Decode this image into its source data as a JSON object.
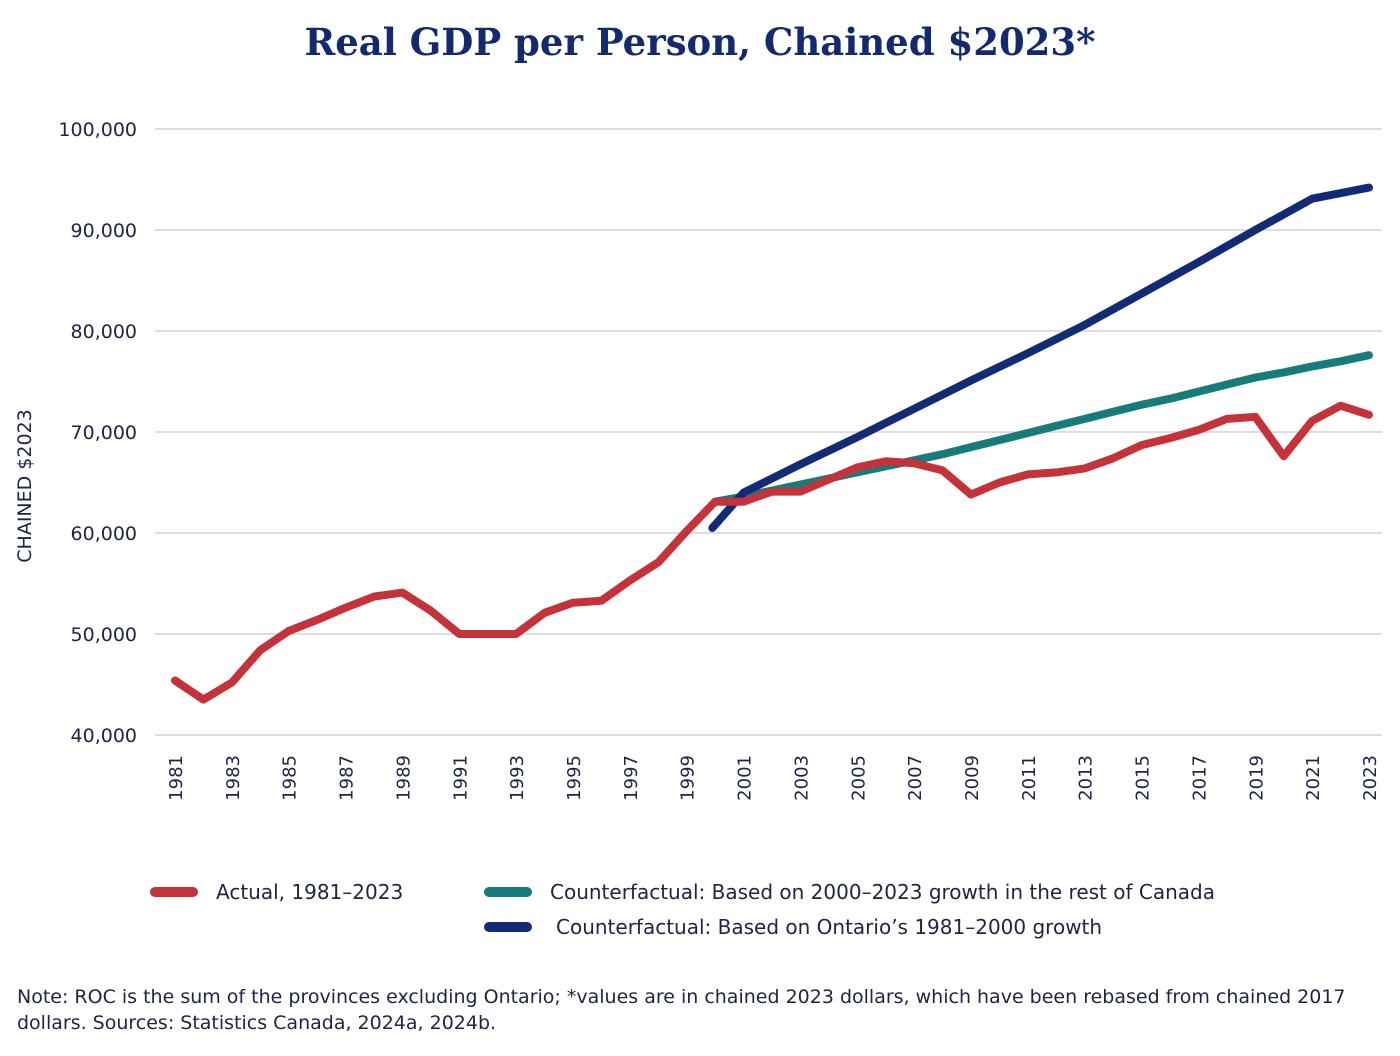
{
  "chart_data": {
    "type": "line",
    "title": "Real GDP per Person, Chained $2023*",
    "ylabel": "CHAINED $2023",
    "xlabel": "",
    "ylim": [
      40000,
      100000
    ],
    "yticks": [
      40000,
      50000,
      60000,
      70000,
      80000,
      90000,
      100000
    ],
    "ytick_labels": [
      "40,000",
      "50,000",
      "60,000",
      "70,000",
      "80,000",
      "90,000",
      "100,000"
    ],
    "xticks": [
      1981,
      1983,
      1985,
      1987,
      1989,
      1991,
      1993,
      1995,
      1997,
      1999,
      2001,
      2003,
      2005,
      2007,
      2009,
      2011,
      2013,
      2015,
      2017,
      2019,
      2021,
      2023
    ],
    "grid": true,
    "legend_position": "bottom",
    "series": [
      {
        "name": "Actual, 1981–2023",
        "color": "#c4333a",
        "x": [
          1981,
          1982,
          1983,
          1984,
          1985,
          1986,
          1987,
          1988,
          1989,
          1990,
          1991,
          1992,
          1993,
          1994,
          1995,
          1996,
          1997,
          1998,
          1999,
          2000,
          2001,
          2002,
          2003,
          2004,
          2005,
          2006,
          2007,
          2008,
          2009,
          2010,
          2011,
          2012,
          2013,
          2014,
          2015,
          2016,
          2017,
          2018,
          2019,
          2020,
          2021,
          2022,
          2023
        ],
        "values": [
          45400,
          43500,
          45200,
          48400,
          50300,
          51400,
          52600,
          53700,
          54100,
          52300,
          50000,
          50000,
          50000,
          52100,
          53100,
          53300,
          55300,
          57100,
          60200,
          63100,
          63100,
          64100,
          64100,
          65300,
          66500,
          67100,
          66900,
          66200,
          63800,
          65000,
          65800,
          66000,
          66400,
          67400,
          68700,
          69400,
          70200,
          71300,
          71500,
          67600,
          71100,
          72600,
          71700
        ]
      },
      {
        "name": "Counterfactual: Based on 2000–2023 growth in the rest of Canada",
        "color": "#167b7a",
        "x": [
          2000,
          2001,
          2002,
          2003,
          2004,
          2005,
          2006,
          2007,
          2008,
          2009,
          2010,
          2011,
          2012,
          2013,
          2014,
          2015,
          2016,
          2017,
          2018,
          2019,
          2020,
          2021,
          2022,
          2023
        ],
        "values": [
          63100,
          63600,
          64200,
          64800,
          65400,
          66000,
          66600,
          67200,
          67800,
          68500,
          69200,
          69900,
          70600,
          71300,
          72000,
          72700,
          73300,
          74000,
          74700,
          75400,
          75900,
          76500,
          77000,
          77600
        ]
      },
      {
        "name": "Counterfactual: Based on Ontario’s 1981–2000 growth",
        "color": "#132b74",
        "x": [
          1999.9,
          2001,
          2003,
          2005,
          2007,
          2009,
          2011,
          2013,
          2015,
          2017,
          2019,
          2021,
          2023
        ],
        "values": [
          60500,
          64000,
          66800,
          69500,
          72300,
          75100,
          77800,
          80600,
          83700,
          86800,
          90000,
          93100,
          94200
        ]
      }
    ]
  },
  "legend": {
    "actual": "Actual, 1981–2023",
    "roc": "Counterfactual: Based on 2000–2023 growth in the rest of Canada",
    "ontario": "Counterfactual: Based on Ontario’s 1981–2000 growth"
  },
  "note": "Note: ROC is the sum of the provinces excluding Ontario; *values are in chained 2023 dollars, which have been rebased from chained 2017 dollars. Sources: Statistics Canada, 2024a, 2024b."
}
